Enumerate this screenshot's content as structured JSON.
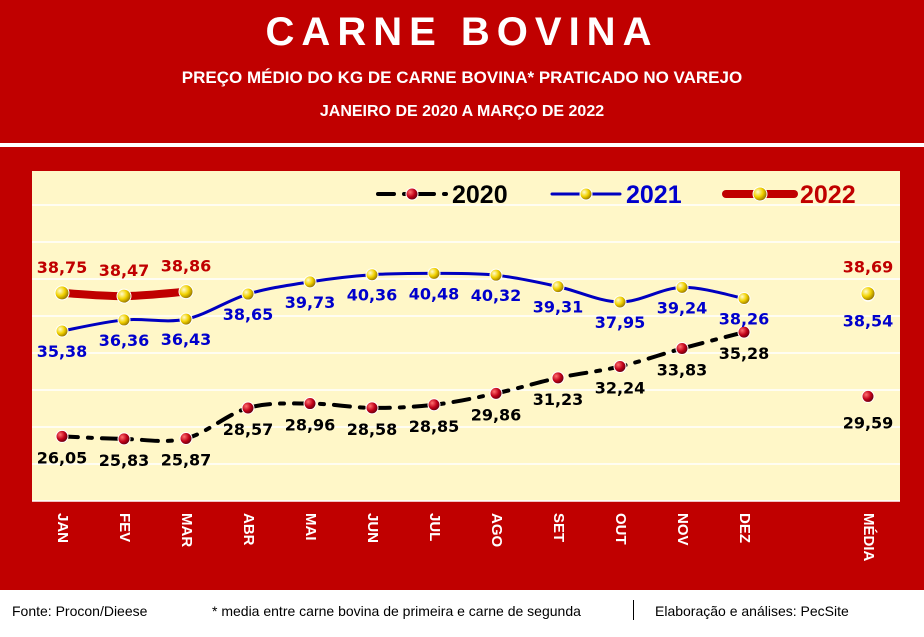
{
  "header": {
    "title": "CARNE BOVINA",
    "subtitle": "PREÇO MÉDIO DO KG DE CARNE BOVINA* PRATICADO NO VAREJO",
    "subtitle2": "JANEIRO DE 2020 A MARÇO DE 2022"
  },
  "footer": {
    "source": "Fonte: Procon/Dieese",
    "footnote": "* media entre carne bovina de primeira e carne de segunda",
    "credit": "Elaboração e análises: PecSite"
  },
  "colors": {
    "frame_red": "#c00000",
    "plot_bg": "#fff7c8",
    "series_2020": "#000000",
    "series_2021": "#0000c0",
    "series_2022": "#c00000",
    "label_2020": "#000000",
    "label_2021": "#0000cc",
    "label_2022": "#c00000"
  },
  "chart_data": {
    "type": "line",
    "categories": [
      "JAN",
      "FEV",
      "MAR",
      "ABR",
      "MAI",
      "JUN",
      "JUL",
      "AGO",
      "SET",
      "OUT",
      "NOV",
      "DEZ",
      "MÉDIA"
    ],
    "legend_position": "top-right",
    "grid": "horizontal",
    "series": [
      {
        "name": "2020",
        "values": [
          26.05,
          25.83,
          25.87,
          28.57,
          28.96,
          28.58,
          28.85,
          29.86,
          31.23,
          32.24,
          33.83,
          35.28,
          null
        ],
        "labels": [
          "26,05",
          "25,83",
          "25,87",
          "28,57",
          "28,96",
          "28,58",
          "28,85",
          "29,86",
          "31,23",
          "32,24",
          "33,83",
          "35,28",
          ""
        ],
        "average": 29.59,
        "average_label": "29,59",
        "line_style": "dash-dot"
      },
      {
        "name": "2021",
        "values": [
          35.38,
          36.36,
          36.43,
          38.65,
          39.73,
          40.36,
          40.48,
          40.32,
          39.31,
          37.95,
          39.24,
          38.26,
          null
        ],
        "labels": [
          "35,38",
          "36,36",
          "36,43",
          "38,65",
          "39,73",
          "40,36",
          "40,48",
          "40,32",
          "39,31",
          "37,95",
          "39,24",
          "38,26",
          ""
        ],
        "average": 38.54,
        "average_label": "38,54",
        "line_style": "solid"
      },
      {
        "name": "2022",
        "values": [
          38.75,
          38.47,
          38.86,
          null,
          null,
          null,
          null,
          null,
          null,
          null,
          null,
          null,
          null
        ],
        "labels": [
          "38,75",
          "38,47",
          "38,86",
          "",
          "",
          "",
          "",
          "",
          "",
          "",
          "",
          "",
          ""
        ],
        "average": 38.69,
        "average_label": "38,69",
        "line_style": "thick"
      }
    ]
  }
}
